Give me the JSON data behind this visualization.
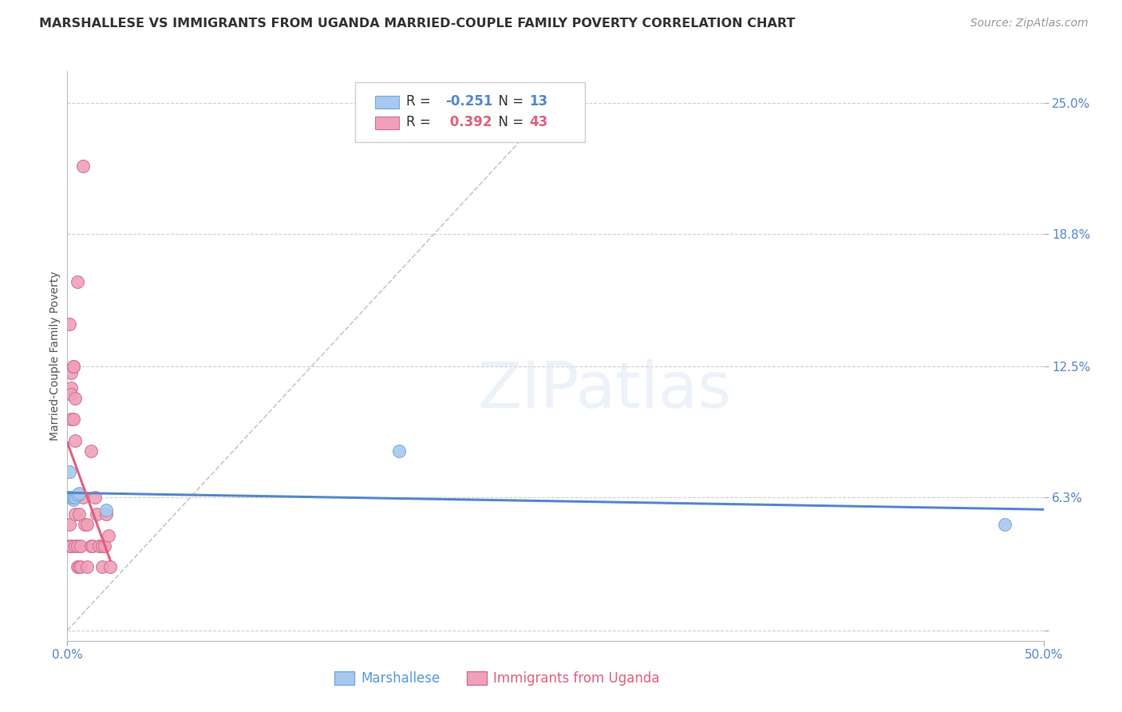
{
  "title": "MARSHALLESE VS IMMIGRANTS FROM UGANDA MARRIED-COUPLE FAMILY POVERTY CORRELATION CHART",
  "source": "Source: ZipAtlas.com",
  "ylabel": "Married-Couple Family Poverty",
  "xlim": [
    0.0,
    0.5
  ],
  "ylim": [
    -0.005,
    0.265
  ],
  "yticks": [
    0.0,
    0.063,
    0.125,
    0.188,
    0.25
  ],
  "ytick_labels": [
    "",
    "6.3%",
    "12.5%",
    "18.8%",
    "25.0%"
  ],
  "xticks": [
    0.0,
    0.5
  ],
  "xtick_labels": [
    "0.0%",
    "50.0%"
  ],
  "grid_color": "#d0d0d0",
  "background_color": "#ffffff",
  "series1_color": "#a8c8f0",
  "series1_edge": "#7aa8d8",
  "series1_line_color": "#5588cc",
  "series2_color": "#f0a0b8",
  "series2_edge": "#d07090",
  "series2_line_color": "#e06080",
  "diagonal_color": "#c8c8c8",
  "marshallese_x": [
    0.001,
    0.001,
    0.002,
    0.002,
    0.003,
    0.003,
    0.003,
    0.004,
    0.005,
    0.006,
    0.02,
    0.17,
    0.48
  ],
  "marshallese_y": [
    0.075,
    0.063,
    0.063,
    0.063,
    0.063,
    0.062,
    0.063,
    0.063,
    0.064,
    0.065,
    0.057,
    0.085,
    0.05
  ],
  "uganda_x": [
    0.001,
    0.001,
    0.001,
    0.001,
    0.001,
    0.002,
    0.002,
    0.002,
    0.002,
    0.002,
    0.002,
    0.003,
    0.003,
    0.003,
    0.003,
    0.004,
    0.004,
    0.004,
    0.004,
    0.005,
    0.005,
    0.005,
    0.006,
    0.006,
    0.007,
    0.007,
    0.008,
    0.008,
    0.009,
    0.01,
    0.01,
    0.012,
    0.012,
    0.013,
    0.014,
    0.015,
    0.016,
    0.018,
    0.018,
    0.019,
    0.02,
    0.021,
    0.022
  ],
  "uganda_y": [
    0.145,
    0.063,
    0.063,
    0.05,
    0.04,
    0.122,
    0.115,
    0.112,
    0.1,
    0.063,
    0.04,
    0.125,
    0.125,
    0.1,
    0.063,
    0.11,
    0.09,
    0.055,
    0.04,
    0.165,
    0.04,
    0.03,
    0.055,
    0.03,
    0.04,
    0.03,
    0.22,
    0.063,
    0.05,
    0.05,
    0.03,
    0.085,
    0.04,
    0.04,
    0.063,
    0.055,
    0.04,
    0.04,
    0.03,
    0.04,
    0.055,
    0.045,
    0.03
  ],
  "title_fontsize": 11.5,
  "axis_label_fontsize": 10,
  "tick_fontsize": 11,
  "source_fontsize": 10,
  "legend_R1": "R = -0.251",
  "legend_N1": "N =  13",
  "legend_R2": "R =  0.392",
  "legend_N2": "N = 43",
  "legend_color1": "#a8c8f0",
  "legend_color2": "#f0a0b8",
  "legend_edge1": "#7aa8d8",
  "legend_edge2": "#d07090",
  "bottom_label1": "Marshallese",
  "bottom_label2": "Immigrants from Uganda",
  "bottom_color1": "#5599dd",
  "bottom_color2": "#e06080"
}
